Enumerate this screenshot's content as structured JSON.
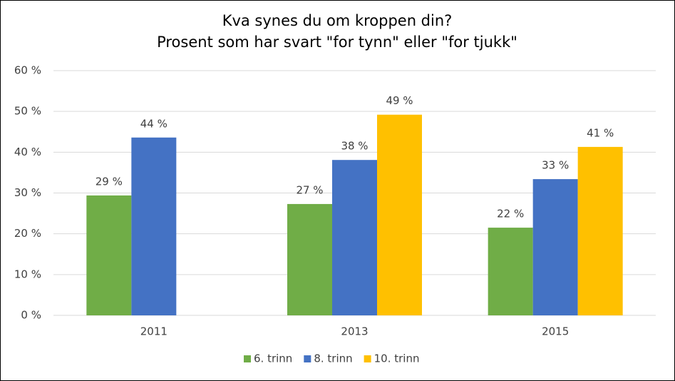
{
  "chart_data": {
    "type": "bar",
    "title": "Kva synes du om kroppen din?",
    "subtitle": "Prosent som har svart \"for tynn\" eller \"for tjukk\"",
    "categories": [
      "2011",
      "2013",
      "2015"
    ],
    "series": [
      {
        "name": "6. trinn",
        "color": "#70ad47",
        "values": [
          29.4,
          27.3,
          21.5
        ],
        "value_labels": [
          "29 %",
          "27 %",
          "22 %"
        ]
      },
      {
        "name": "8. trinn",
        "color": "#4472c4",
        "values": [
          43.6,
          38.1,
          33.4
        ],
        "value_labels": [
          "44 %",
          "38 %",
          "33 %"
        ]
      },
      {
        "name": "10. trinn",
        "color": "#ffc000",
        "values": [
          null,
          49.2,
          41.3
        ],
        "value_labels": [
          null,
          "49 %",
          "41 %"
        ]
      }
    ],
    "ylim": [
      0,
      60
    ],
    "yticks": [
      {
        "value": 0,
        "label": "0 %"
      },
      {
        "value": 10,
        "label": "10 %"
      },
      {
        "value": 20,
        "label": "20 %"
      },
      {
        "value": 30,
        "label": "30 %"
      },
      {
        "value": 40,
        "label": "40 %"
      },
      {
        "value": 50,
        "label": "50 %"
      },
      {
        "value": 60,
        "label": "60 %"
      }
    ],
    "grid": true,
    "legend": "bottom"
  }
}
